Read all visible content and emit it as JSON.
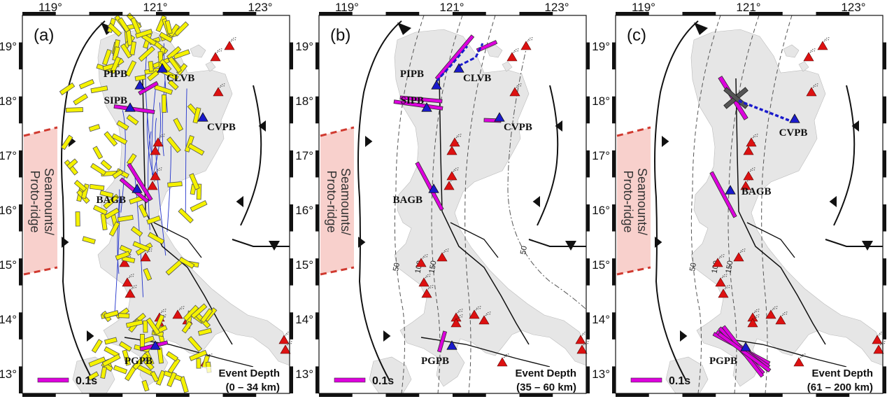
{
  "figure": {
    "longitude_labels": [
      "119°",
      "121°",
      "123°"
    ],
    "latitude_labels": [
      "19°",
      "18°",
      "17°",
      "16°",
      "15°",
      "14°",
      "13°"
    ],
    "scale_bar_label": "0.1s",
    "depth_title": "Event Depth",
    "seamount_label_line1": "Seamounts/",
    "seamount_label_line2": "Proto-ridge",
    "colors": {
      "land": "#e6e6e6",
      "fast_direction_bar_yellow": "#f5f200",
      "station_bar_magenta": "#dd00dd",
      "station_triangle": "#1a1acc",
      "volcano": "#dd1111",
      "seamount_fill": "#f8d0cc",
      "seamount_border": "#d03a30",
      "fault_blue": "#2233cc"
    }
  },
  "panels": [
    {
      "letter": "(a)",
      "depth_range": "(0 – 34 km)",
      "stations": [
        "PIPB",
        "CLVB",
        "SIPB",
        "CVPB",
        "BAGB",
        "PGPB"
      ],
      "contour_labels": []
    },
    {
      "letter": "(b)",
      "depth_range": "(35 – 60 km)",
      "stations": [
        "PIPB",
        "CLVB",
        "SIPB",
        "CVPB",
        "BAGB",
        "PGPB"
      ],
      "contour_labels": [
        "50",
        "100",
        "150",
        "50"
      ]
    },
    {
      "letter": "(c)",
      "depth_range": "(61 – 200 km)",
      "stations": [
        "CVPB",
        "BAGB",
        "PGPB"
      ],
      "contour_labels": [
        "50",
        "100",
        "150"
      ]
    }
  ]
}
